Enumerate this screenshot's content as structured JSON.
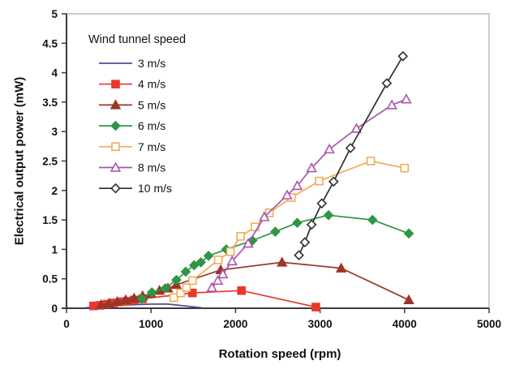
{
  "figure": {
    "background": "#ffffff",
    "axis_color": "#3a3a3a",
    "frame_color": "#b8b8b8",
    "text_color": "#111111"
  },
  "chart_data": {
    "type": "line",
    "title": "",
    "xlabel": "Rotation speed (rpm)",
    "ylabel": "Electrical output power (mW)",
    "legend_title": "Wind tunnel speed",
    "legend_position": "top-left-inside",
    "grid": false,
    "xlim": [
      0,
      5000
    ],
    "ylim": [
      0,
      5
    ],
    "x_ticks": [
      "0",
      "1000",
      "2000",
      "3000",
      "4000",
      "5000"
    ],
    "y_ticks": [
      "0",
      "0.5",
      "1",
      "1.5",
      "2",
      "2.5",
      "3",
      "3.5",
      "4",
      "4.5",
      "5"
    ],
    "series": [
      {
        "name": "3 m/s",
        "color": "#4d4d99",
        "marker": "none",
        "marker_fill": "none",
        "points": [
          [
            230,
            0.01
          ],
          [
            400,
            0.03
          ],
          [
            600,
            0.05
          ],
          [
            800,
            0.06
          ],
          [
            1000,
            0.07
          ],
          [
            1200,
            0.07
          ],
          [
            1400,
            0.04
          ],
          [
            1600,
            0.01
          ]
        ]
      },
      {
        "name": "4 m/s",
        "color": "#e8382d",
        "marker": "square",
        "marker_fill": "filled",
        "points": [
          [
            320,
            0.04
          ],
          [
            400,
            0.05
          ],
          [
            480,
            0.07
          ],
          [
            560,
            0.09
          ],
          [
            640,
            0.11
          ],
          [
            720,
            0.12
          ],
          [
            800,
            0.14
          ],
          [
            900,
            0.16
          ],
          [
            1490,
            0.26
          ],
          [
            2070,
            0.3
          ],
          [
            2950,
            0.02
          ]
        ]
      },
      {
        "name": "5 m/s",
        "color": "#9c3529",
        "marker": "triangle",
        "marker_fill": "filled",
        "points": [
          [
            410,
            0.06
          ],
          [
            500,
            0.08
          ],
          [
            600,
            0.11
          ],
          [
            700,
            0.14
          ],
          [
            800,
            0.17
          ],
          [
            900,
            0.21
          ],
          [
            1000,
            0.25
          ],
          [
            1100,
            0.3
          ],
          [
            1200,
            0.34
          ],
          [
            1300,
            0.4
          ],
          [
            1825,
            0.65
          ],
          [
            2550,
            0.78
          ],
          [
            3250,
            0.68
          ],
          [
            4050,
            0.14
          ]
        ]
      },
      {
        "name": "6 m/s",
        "color": "#2e9644",
        "marker": "diamond",
        "marker_fill": "filled",
        "points": [
          [
            890,
            0.16
          ],
          [
            1010,
            0.27
          ],
          [
            1170,
            0.34
          ],
          [
            1300,
            0.48
          ],
          [
            1410,
            0.62
          ],
          [
            1510,
            0.73
          ],
          [
            1590,
            0.78
          ],
          [
            1680,
            0.89
          ],
          [
            1890,
            1.0
          ],
          [
            2200,
            1.15
          ],
          [
            2470,
            1.3
          ],
          [
            2730,
            1.45
          ],
          [
            3100,
            1.58
          ],
          [
            3620,
            1.5
          ],
          [
            4050,
            1.27
          ]
        ]
      },
      {
        "name": "7 m/s",
        "color": "#f0ab58",
        "marker": "square",
        "marker_fill": "open",
        "points": [
          [
            1270,
            0.18
          ],
          [
            1350,
            0.26
          ],
          [
            1420,
            0.35
          ],
          [
            1490,
            0.47
          ],
          [
            1795,
            0.82
          ],
          [
            1940,
            0.96
          ],
          [
            2060,
            1.22
          ],
          [
            2230,
            1.38
          ],
          [
            2400,
            1.62
          ],
          [
            2660,
            1.88
          ],
          [
            2990,
            2.16
          ],
          [
            3600,
            2.5
          ],
          [
            4000,
            2.38
          ]
        ]
      },
      {
        "name": "8 m/s",
        "color": "#a855ac",
        "marker": "triangle",
        "marker_fill": "open",
        "points": [
          [
            1720,
            0.35
          ],
          [
            1790,
            0.47
          ],
          [
            1850,
            0.58
          ],
          [
            1960,
            0.8
          ],
          [
            2150,
            1.1
          ],
          [
            2340,
            1.55
          ],
          [
            2610,
            1.92
          ],
          [
            2730,
            2.08
          ],
          [
            2900,
            2.38
          ],
          [
            3110,
            2.7
          ],
          [
            3430,
            3.05
          ],
          [
            3850,
            3.45
          ],
          [
            4020,
            3.55
          ]
        ]
      },
      {
        "name": "10 m/s",
        "color": "#2f2f2f",
        "marker": "diamond",
        "marker_fill": "open",
        "points": [
          [
            2750,
            0.9
          ],
          [
            2820,
            1.12
          ],
          [
            2900,
            1.42
          ],
          [
            3020,
            1.78
          ],
          [
            3160,
            2.15
          ],
          [
            3360,
            2.72
          ],
          [
            3790,
            3.82
          ],
          [
            3980,
            4.28
          ]
        ]
      }
    ]
  }
}
